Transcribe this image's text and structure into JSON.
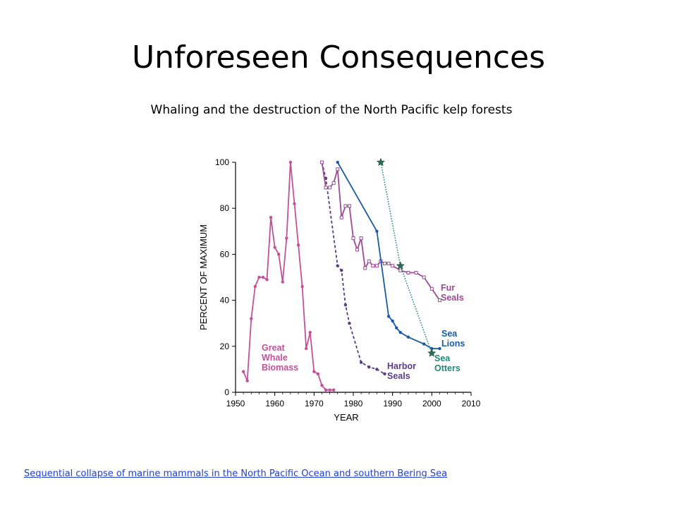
{
  "slide": {
    "title": "Unforeseen Consequences",
    "subtitle": "Whaling and the destruction of the North Pacific kelp forests",
    "link_text": "Sequential collapse of marine mammals in the North Pacific Ocean and southern Bering Sea"
  },
  "chart_data": {
    "type": "line",
    "xlabel": "YEAR",
    "ylabel": "PERCENT OF MAXIMUM",
    "xlim": [
      1950,
      2010
    ],
    "ylim": [
      0,
      100
    ],
    "xticks": [
      "1950",
      "1960",
      "1970",
      "1980",
      "1990",
      "2000",
      "2010"
    ],
    "yticks": [
      "0",
      "20",
      "40",
      "60",
      "80",
      "100"
    ],
    "legend_placement": "inline labels at series ends",
    "series": [
      {
        "name": "Great Whale Biomass",
        "label_lines": [
          "Great",
          "Whale",
          "Biomass"
        ],
        "color": "#c2509a",
        "style": "solid",
        "marker": "dot",
        "points": [
          [
            1952,
            9
          ],
          [
            1953,
            5
          ],
          [
            1954,
            32
          ],
          [
            1955,
            46
          ],
          [
            1956,
            50
          ],
          [
            1957,
            50
          ],
          [
            1958,
            49
          ],
          [
            1959,
            76
          ],
          [
            1960,
            63
          ],
          [
            1961,
            60
          ],
          [
            1962,
            48
          ],
          [
            1963,
            67
          ],
          [
            1964,
            100
          ],
          [
            1965,
            82
          ],
          [
            1966,
            64
          ],
          [
            1967,
            46
          ],
          [
            1968,
            19
          ],
          [
            1969,
            26
          ],
          [
            1970,
            9
          ],
          [
            1971,
            8
          ],
          [
            1972,
            3
          ],
          [
            1973,
            1
          ],
          [
            1974,
            1
          ],
          [
            1975,
            1
          ]
        ]
      },
      {
        "name": "Harbor Seals",
        "label_lines": [
          "Harbor",
          "Seals"
        ],
        "color": "#5b3a86",
        "style": "dashed",
        "marker": "dot",
        "points": [
          [
            1972,
            100
          ],
          [
            1973,
            93
          ],
          [
            1976,
            55
          ],
          [
            1977,
            53
          ],
          [
            1978,
            38
          ],
          [
            1979,
            30
          ],
          [
            1982,
            13
          ],
          [
            1984,
            11
          ],
          [
            1986,
            10
          ],
          [
            1988,
            8
          ]
        ]
      },
      {
        "name": "Fur Seals",
        "label_lines": [
          "Fur",
          "Seals"
        ],
        "color": "#9a4a96",
        "style": "solid",
        "marker": "square",
        "points": [
          [
            1972,
            100
          ],
          [
            1973,
            89
          ],
          [
            1974,
            89
          ],
          [
            1975,
            91
          ],
          [
            1976,
            97
          ],
          [
            1977,
            76
          ],
          [
            1978,
            81
          ],
          [
            1979,
            81
          ],
          [
            1980,
            67
          ],
          [
            1981,
            62
          ],
          [
            1982,
            67
          ],
          [
            1983,
            54
          ],
          [
            1984,
            57
          ],
          [
            1985,
            55
          ],
          [
            1986,
            55
          ],
          [
            1987,
            57
          ],
          [
            1988,
            56
          ],
          [
            1989,
            56
          ],
          [
            1990,
            55
          ],
          [
            1992,
            53
          ],
          [
            1994,
            52
          ],
          [
            1996,
            52
          ],
          [
            1998,
            50
          ],
          [
            2000,
            45
          ],
          [
            2002,
            40
          ]
        ]
      },
      {
        "name": "Sea Lions",
        "label_lines": [
          "Sea",
          "Lions"
        ],
        "color": "#1a5aa0",
        "style": "solid",
        "marker": "dot",
        "points": [
          [
            1976,
            100
          ],
          [
            1986,
            70
          ],
          [
            1989,
            33
          ],
          [
            1990,
            31
          ],
          [
            1991,
            28
          ],
          [
            1992,
            26
          ],
          [
            1994,
            24
          ],
          [
            1998,
            21
          ],
          [
            2000,
            19
          ],
          [
            2002,
            19
          ]
        ]
      },
      {
        "name": "Sea Otters",
        "label_lines": [
          "Sea",
          "Otters"
        ],
        "color": "#1e8a7a",
        "style": "dotted",
        "marker": "star",
        "points": [
          [
            1987,
            100
          ],
          [
            1992,
            55
          ],
          [
            2000,
            17
          ]
        ]
      }
    ]
  }
}
